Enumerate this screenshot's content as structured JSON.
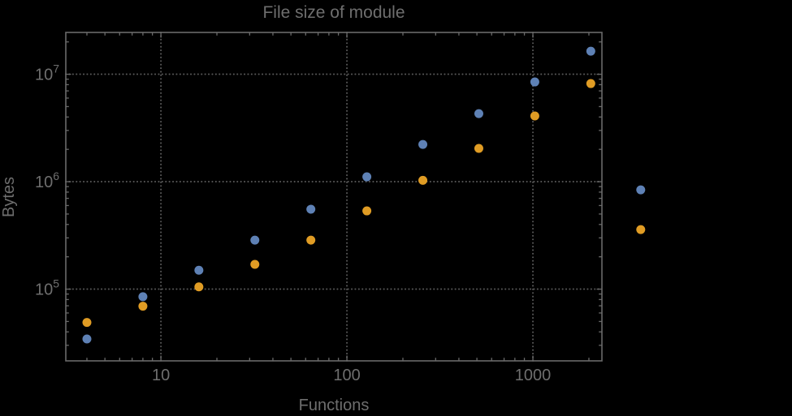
{
  "colors": {
    "background": "#000000",
    "frame": "#6a6a6a",
    "grid": "#595959",
    "text": "#6e6e6e",
    "series_blue": "#5E81B5",
    "series_orange": "#E09C24"
  },
  "chart_data": {
    "type": "scatter",
    "title": "File size of module",
    "xlabel": "Functions",
    "ylabel": "Bytes",
    "xscale": "log",
    "yscale": "log",
    "xlim": [
      3.08,
      2350
    ],
    "ylim": [
      21500,
      24500000
    ],
    "xticks": [
      10,
      100,
      1000
    ],
    "yticks": [
      100000,
      1000000,
      10000000
    ],
    "grid": {
      "major": true,
      "style": "dotted",
      "minor": false
    },
    "legend": "none",
    "notes": "two rightmost points are drawn outside the plot frame",
    "series": [
      {
        "name": "series-1-blue",
        "color": "#5E81B5",
        "points": [
          [
            4,
            34400
          ],
          [
            8,
            85000
          ],
          [
            16,
            150000
          ],
          [
            32,
            286000
          ],
          [
            64,
            554000
          ],
          [
            128,
            1110000
          ],
          [
            256,
            2220000
          ],
          [
            512,
            4300000
          ],
          [
            1024,
            8480000
          ],
          [
            2048,
            16400000
          ],
          [
            3800,
            840000
          ]
        ]
      },
      {
        "name": "series-2-orange",
        "color": "#E09C24",
        "points": [
          [
            4,
            49000
          ],
          [
            8,
            69400
          ],
          [
            16,
            105000
          ],
          [
            32,
            170000
          ],
          [
            64,
            286000
          ],
          [
            128,
            535000
          ],
          [
            256,
            1030000
          ],
          [
            512,
            2040000
          ],
          [
            1024,
            4090000
          ],
          [
            2048,
            8190000
          ],
          [
            3800,
            358000
          ]
        ]
      }
    ]
  }
}
